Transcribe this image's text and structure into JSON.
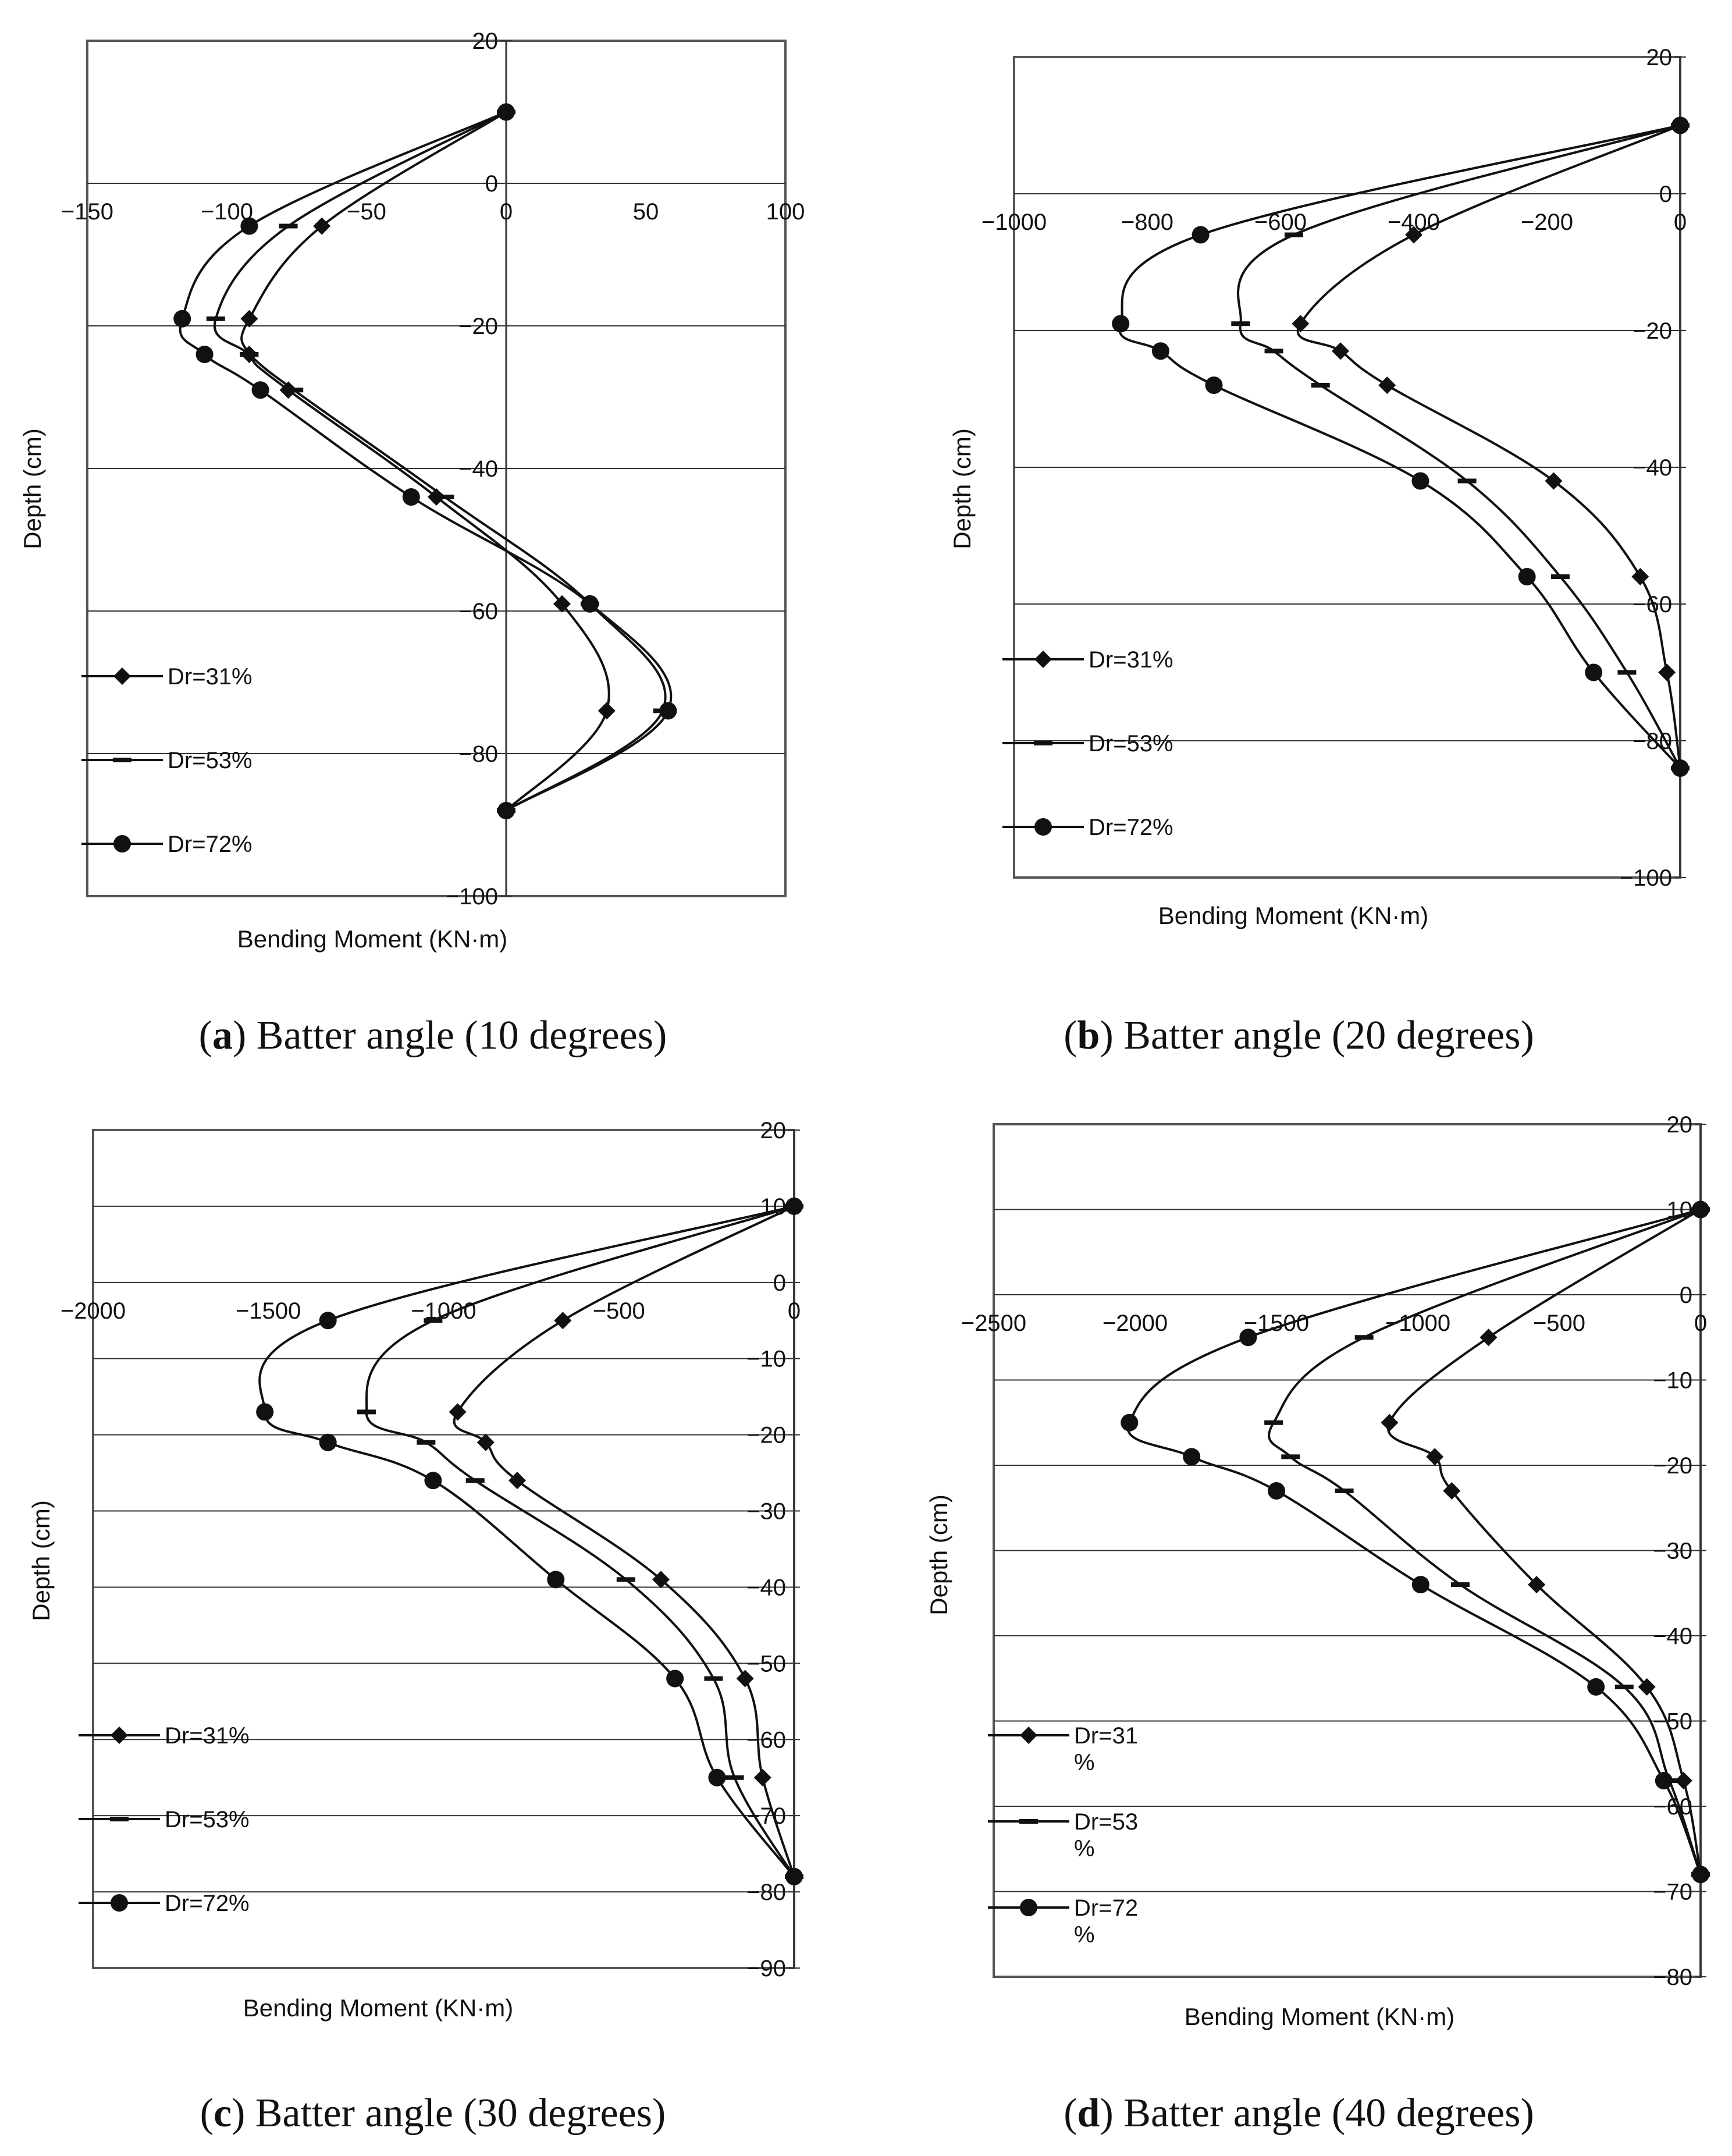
{
  "figure": {
    "line_color": "#111111",
    "frame_color": "#555555",
    "grid_color": "#333333"
  },
  "chart_data": [
    {
      "id": "a",
      "type": "line",
      "caption_letter": "a",
      "caption_text": "Batter angle (10 degrees)",
      "xlabel": "Bending Moment (KN·m)",
      "ylabel": "Depth (cm)",
      "xlim": [
        -150,
        100
      ],
      "ylim": [
        -100,
        20
      ],
      "xticks": [
        -150,
        -100,
        -50,
        0,
        50,
        100
      ],
      "xtick_labels": [
        "−150",
        "−100",
        "−50",
        "0",
        "50",
        "100"
      ],
      "yticks": [
        20,
        0,
        -20,
        -40,
        -60,
        -80,
        -100
      ],
      "ytick_labels": [
        "20",
        "0",
        "−20",
        "−40",
        "−60",
        "−80",
        "−100"
      ],
      "grid": true,
      "legend_position": "lower-left",
      "series": [
        {
          "name": "Dr=31%",
          "legend_label": [
            "Dr=31%"
          ],
          "marker": "diamond",
          "points": [
            [
              0,
              10
            ],
            [
              -66,
              -6
            ],
            [
              -92,
              -19
            ],
            [
              -92,
              -24
            ],
            [
              -78,
              -29
            ],
            [
              -25,
              -44
            ],
            [
              20,
              -59
            ],
            [
              36,
              -74
            ],
            [
              0,
              -88
            ]
          ]
        },
        {
          "name": "Dr=53%",
          "legend_label": [
            "Dr=53%"
          ],
          "marker": "dash",
          "points": [
            [
              0,
              10
            ],
            [
              -78,
              -6
            ],
            [
              -104,
              -19
            ],
            [
              -92,
              -24
            ],
            [
              -76,
              -29
            ],
            [
              -22,
              -44
            ],
            [
              30,
              -59
            ],
            [
              56,
              -74
            ],
            [
              0,
              -88
            ]
          ]
        },
        {
          "name": "Dr=72%",
          "legend_label": [
            "Dr=72%"
          ],
          "marker": "circle",
          "points": [
            [
              0,
              10
            ],
            [
              -92,
              -6
            ],
            [
              -116,
              -19
            ],
            [
              -108,
              -24
            ],
            [
              -88,
              -29
            ],
            [
              -34,
              -44
            ],
            [
              30,
              -59
            ],
            [
              58,
              -74
            ],
            [
              0,
              -88
            ]
          ]
        }
      ]
    },
    {
      "id": "b",
      "type": "line",
      "caption_letter": "b",
      "caption_text": "Batter angle (20 degrees)",
      "xlabel": "Bending Moment (KN·m)",
      "ylabel": "Depth (cm)",
      "xlim": [
        -1000,
        0
      ],
      "ylim": [
        -100,
        20
      ],
      "xticks": [
        -1000,
        -800,
        -600,
        -400,
        -200,
        0
      ],
      "xtick_labels": [
        "−1000",
        "−800",
        "−600",
        "−400",
        "−200",
        "0"
      ],
      "yticks": [
        20,
        0,
        -20,
        -40,
        -60,
        -80,
        -100
      ],
      "ytick_labels": [
        "20",
        "0",
        "−20",
        "−40",
        "−60",
        "−80",
        "−100"
      ],
      "grid": true,
      "legend_position": "lower-left",
      "series": [
        {
          "name": "Dr=31%",
          "legend_label": [
            "Dr=31%"
          ],
          "marker": "diamond",
          "points": [
            [
              0,
              10
            ],
            [
              -400,
              -6
            ],
            [
              -570,
              -19
            ],
            [
              -510,
              -23
            ],
            [
              -440,
              -28
            ],
            [
              -190,
              -42
            ],
            [
              -60,
              -56
            ],
            [
              -20,
              -70
            ],
            [
              0,
              -84
            ]
          ]
        },
        {
          "name": "Dr=53%",
          "legend_label": [
            "Dr=53%"
          ],
          "marker": "dash",
          "points": [
            [
              0,
              10
            ],
            [
              -580,
              -6
            ],
            [
              -660,
              -19
            ],
            [
              -610,
              -23
            ],
            [
              -540,
              -28
            ],
            [
              -320,
              -42
            ],
            [
              -180,
              -56
            ],
            [
              -80,
              -70
            ],
            [
              0,
              -84
            ]
          ]
        },
        {
          "name": "Dr=72%",
          "legend_label": [
            "Dr=72%"
          ],
          "marker": "circle",
          "points": [
            [
              0,
              10
            ],
            [
              -720,
              -6
            ],
            [
              -840,
              -19
            ],
            [
              -780,
              -23
            ],
            [
              -700,
              -28
            ],
            [
              -390,
              -42
            ],
            [
              -230,
              -56
            ],
            [
              -130,
              -70
            ],
            [
              0,
              -84
            ]
          ]
        }
      ]
    },
    {
      "id": "c",
      "type": "line",
      "caption_letter": "c",
      "caption_text": "Batter angle (30 degrees)",
      "xlabel": "Bending Moment (KN·m)",
      "ylabel": "Depth (cm)",
      "xlim": [
        -2000,
        0
      ],
      "ylim": [
        -90,
        20
      ],
      "xticks": [
        -2000,
        -1500,
        -1000,
        -500,
        0
      ],
      "xtick_labels": [
        "−2000",
        "−1500",
        "−1000",
        "−500",
        "0"
      ],
      "yticks": [
        20,
        10,
        0,
        -10,
        -20,
        -30,
        -40,
        -50,
        -60,
        -70,
        -80,
        -90
      ],
      "ytick_labels": [
        "20",
        "10",
        "0",
        "−10",
        "−20",
        "−30",
        "−40",
        "−50",
        "−60",
        "−70",
        "−80",
        "−90"
      ],
      "grid": true,
      "legend_position": "lower-left",
      "series": [
        {
          "name": "Dr=31%",
          "legend_label": [
            "Dr=31%"
          ],
          "marker": "diamond",
          "points": [
            [
              0,
              10
            ],
            [
              -660,
              -5
            ],
            [
              -960,
              -17
            ],
            [
              -880,
              -21
            ],
            [
              -790,
              -26
            ],
            [
              -380,
              -39
            ],
            [
              -140,
              -52
            ],
            [
              -90,
              -65
            ],
            [
              0,
              -78
            ]
          ]
        },
        {
          "name": "Dr=53%",
          "legend_label": [
            "Dr=53%"
          ],
          "marker": "dash",
          "points": [
            [
              0,
              10
            ],
            [
              -1030,
              -5
            ],
            [
              -1220,
              -17
            ],
            [
              -1050,
              -21
            ],
            [
              -910,
              -26
            ],
            [
              -480,
              -39
            ],
            [
              -230,
              -52
            ],
            [
              -170,
              -65
            ],
            [
              0,
              -78
            ]
          ]
        },
        {
          "name": "Dr=72%",
          "legend_label": [
            "Dr=72%"
          ],
          "marker": "circle",
          "points": [
            [
              0,
              10
            ],
            [
              -1330,
              -5
            ],
            [
              -1510,
              -17
            ],
            [
              -1330,
              -21
            ],
            [
              -1030,
              -26
            ],
            [
              -680,
              -39
            ],
            [
              -340,
              -52
            ],
            [
              -220,
              -65
            ],
            [
              0,
              -78
            ]
          ]
        }
      ]
    },
    {
      "id": "d",
      "type": "line",
      "caption_letter": "d",
      "caption_text": "Batter angle (40 degrees)",
      "xlabel": "Bending Moment (KN·m)",
      "ylabel": "Depth (cm)",
      "xlim": [
        -2500,
        0
      ],
      "ylim": [
        -80,
        20
      ],
      "xticks": [
        -2500,
        -2000,
        -1500,
        -1000,
        -500,
        0
      ],
      "xtick_labels": [
        "−2500",
        "−2000",
        "−1500",
        "−1000",
        "−500",
        "0"
      ],
      "yticks": [
        20,
        10,
        0,
        -10,
        -20,
        -30,
        -40,
        -50,
        -60,
        -70,
        -80
      ],
      "ytick_labels": [
        "20",
        "10",
        "0",
        "−10",
        "−20",
        "−30",
        "−40",
        "−50",
        "−60",
        "−70",
        "−80"
      ],
      "grid": true,
      "legend_position": "lower-left",
      "series": [
        {
          "name": "Dr=31%",
          "legend_label": [
            "Dr=31",
            "%"
          ],
          "marker": "diamond",
          "points": [
            [
              0,
              10
            ],
            [
              -750,
              -5
            ],
            [
              -1100,
              -15
            ],
            [
              -940,
              -19
            ],
            [
              -880,
              -23
            ],
            [
              -580,
              -34
            ],
            [
              -190,
              -46
            ],
            [
              -60,
              -57
            ],
            [
              0,
              -68
            ]
          ]
        },
        {
          "name": "Dr=53%",
          "legend_label": [
            "Dr=53",
            "%"
          ],
          "marker": "dash",
          "points": [
            [
              0,
              10
            ],
            [
              -1190,
              -5
            ],
            [
              -1510,
              -15
            ],
            [
              -1450,
              -19
            ],
            [
              -1260,
              -23
            ],
            [
              -850,
              -34
            ],
            [
              -270,
              -46
            ],
            [
              -110,
              -57
            ],
            [
              0,
              -68
            ]
          ]
        },
        {
          "name": "Dr=72%",
          "legend_label": [
            "Dr=72",
            "%"
          ],
          "marker": "circle",
          "points": [
            [
              0,
              10
            ],
            [
              -1600,
              -5
            ],
            [
              -2020,
              -15
            ],
            [
              -1800,
              -19
            ],
            [
              -1500,
              -23
            ],
            [
              -990,
              -34
            ],
            [
              -370,
              -46
            ],
            [
              -130,
              -57
            ],
            [
              0,
              -68
            ]
          ]
        }
      ]
    }
  ]
}
